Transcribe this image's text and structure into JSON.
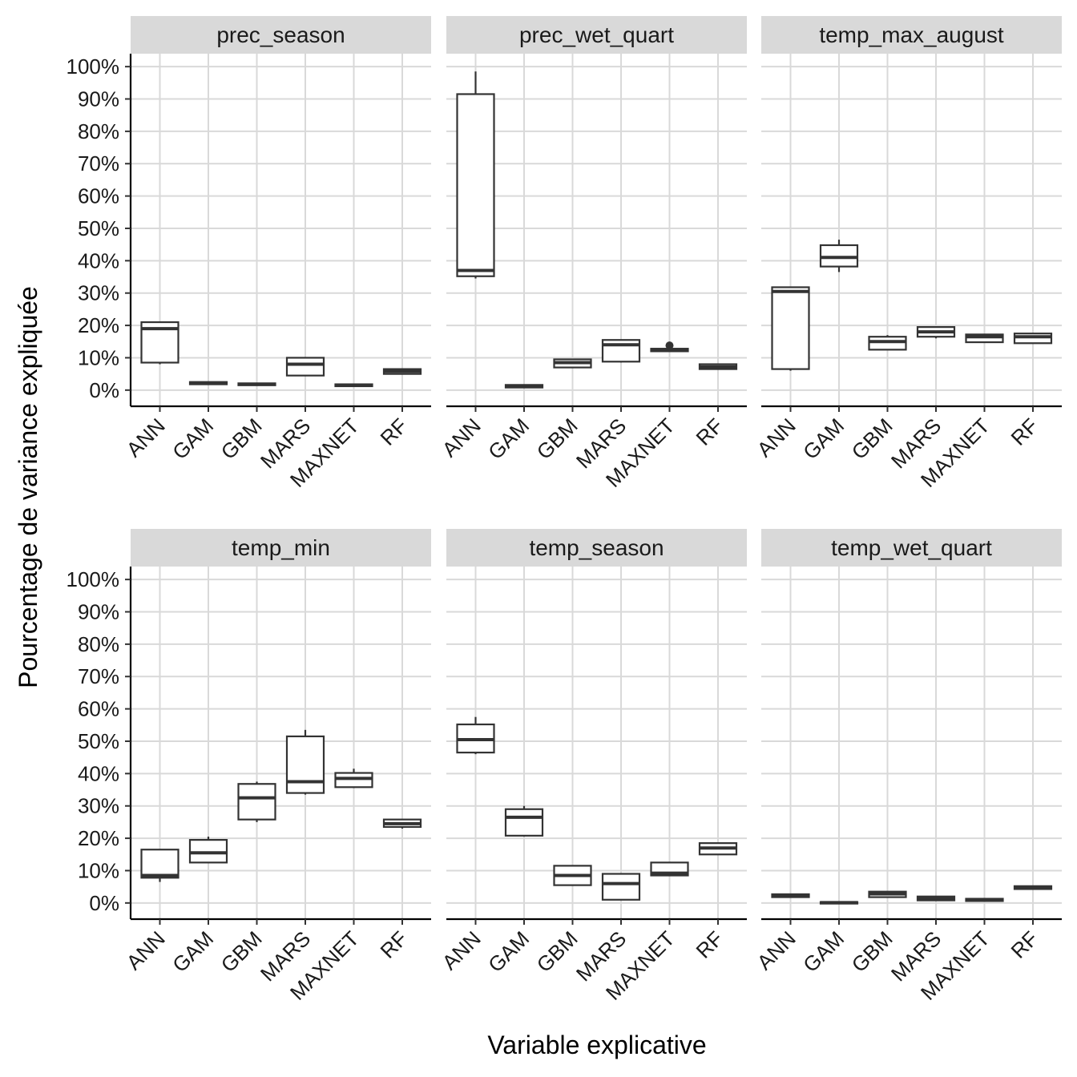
{
  "chart_data": {
    "type": "boxplot",
    "xlabel": "Variable explicative",
    "ylabel": "Pourcentage de variance expliquée",
    "ylim": [
      -5,
      104
    ],
    "y_ticks": [
      0,
      10,
      20,
      30,
      40,
      50,
      60,
      70,
      80,
      90,
      100
    ],
    "y_tick_labels": [
      "0%",
      "10%",
      "20%",
      "30%",
      "40%",
      "50%",
      "60%",
      "70%",
      "80%",
      "90%",
      "100%"
    ],
    "categories": [
      "ANN",
      "GAM",
      "GBM",
      "MARS",
      "MAXNET",
      "RF"
    ],
    "grid": true,
    "colors": {
      "strip": "#d9d9d9",
      "grid": "#d9d9d9",
      "box_stroke": "#333333",
      "box_fill": "#ffffff"
    },
    "panels": [
      {
        "title": "prec_season",
        "boxes": [
          {
            "category": "ANN",
            "min": 8,
            "q1": 8.5,
            "median": 19,
            "q3": 21,
            "max": 21,
            "outliers": []
          },
          {
            "category": "GAM",
            "min": 1.8,
            "q1": 1.8,
            "median": 2.2,
            "q3": 2.5,
            "max": 2.5,
            "outliers": []
          },
          {
            "category": "GBM",
            "min": 1.5,
            "q1": 1.5,
            "median": 1.8,
            "q3": 2.1,
            "max": 2.1,
            "outliers": []
          },
          {
            "category": "MARS",
            "min": 4.5,
            "q1": 4.5,
            "median": 8,
            "q3": 10,
            "max": 10,
            "outliers": []
          },
          {
            "category": "MAXNET",
            "min": 1.2,
            "q1": 1.2,
            "median": 1.5,
            "q3": 1.8,
            "max": 1.8,
            "outliers": []
          },
          {
            "category": "RF",
            "min": 5,
            "q1": 5,
            "median": 5.8,
            "q3": 6.5,
            "max": 6.5,
            "outliers": []
          }
        ]
      },
      {
        "title": "prec_wet_quart",
        "boxes": [
          {
            "category": "ANN",
            "min": 34.5,
            "q1": 35.2,
            "median": 37,
            "q3": 91.5,
            "max": 98.5,
            "outliers": []
          },
          {
            "category": "GAM",
            "min": 0.8,
            "q1": 0.8,
            "median": 1.2,
            "q3": 1.6,
            "max": 1.6,
            "outliers": []
          },
          {
            "category": "GBM",
            "min": 7,
            "q1": 7,
            "median": 8.5,
            "q3": 9.5,
            "max": 9.5,
            "outliers": []
          },
          {
            "category": "MARS",
            "min": 8.5,
            "q1": 8.8,
            "median": 14,
            "q3": 15.5,
            "max": 15.5,
            "outliers": []
          },
          {
            "category": "MAXNET",
            "min": 12,
            "q1": 12,
            "median": 12.5,
            "q3": 12.8,
            "max": 12.8,
            "outliers": [
              13.8
            ]
          },
          {
            "category": "RF",
            "min": 6.5,
            "q1": 6.5,
            "median": 7.2,
            "q3": 8,
            "max": 8,
            "outliers": []
          }
        ]
      },
      {
        "title": "temp_max_august",
        "boxes": [
          {
            "category": "ANN",
            "min": 6,
            "q1": 6.5,
            "median": 30.5,
            "q3": 31.8,
            "max": 31.8,
            "outliers": []
          },
          {
            "category": "GAM",
            "min": 36.5,
            "q1": 38.2,
            "median": 41,
            "q3": 44.8,
            "max": 46.5,
            "outliers": []
          },
          {
            "category": "GBM",
            "min": 12.5,
            "q1": 12.5,
            "median": 15,
            "q3": 16.5,
            "max": 17,
            "outliers": []
          },
          {
            "category": "MARS",
            "min": 16,
            "q1": 16.5,
            "median": 18,
            "q3": 19.5,
            "max": 19.5,
            "outliers": []
          },
          {
            "category": "MAXNET",
            "min": 14.8,
            "q1": 14.8,
            "median": 16.5,
            "q3": 17.2,
            "max": 17.2,
            "outliers": []
          },
          {
            "category": "RF",
            "min": 14.5,
            "q1": 14.5,
            "median": 16.5,
            "q3": 17.5,
            "max": 17.5,
            "outliers": []
          }
        ]
      },
      {
        "title": "temp_min",
        "boxes": [
          {
            "category": "ANN",
            "min": 6.5,
            "q1": 7.8,
            "median": 8.5,
            "q3": 16.5,
            "max": 16.5,
            "outliers": []
          },
          {
            "category": "GAM",
            "min": 12.5,
            "q1": 12.5,
            "median": 15.5,
            "q3": 19.5,
            "max": 20.5,
            "outliers": []
          },
          {
            "category": "GBM",
            "min": 25,
            "q1": 25.8,
            "median": 32.5,
            "q3": 36.8,
            "max": 37.5,
            "outliers": []
          },
          {
            "category": "MARS",
            "min": 33.5,
            "q1": 34,
            "median": 37.5,
            "q3": 51.5,
            "max": 53.5,
            "outliers": []
          },
          {
            "category": "MAXNET",
            "min": 35.5,
            "q1": 35.8,
            "median": 38.5,
            "q3": 40.2,
            "max": 41.5,
            "outliers": []
          },
          {
            "category": "RF",
            "min": 23,
            "q1": 23.5,
            "median": 24.5,
            "q3": 25.8,
            "max": 25.8,
            "outliers": []
          }
        ]
      },
      {
        "title": "temp_season",
        "boxes": [
          {
            "category": "ANN",
            "min": 46,
            "q1": 46.5,
            "median": 50.5,
            "q3": 55.2,
            "max": 57.5,
            "outliers": []
          },
          {
            "category": "GAM",
            "min": 20.5,
            "q1": 20.8,
            "median": 26.5,
            "q3": 29,
            "max": 30,
            "outliers": []
          },
          {
            "category": "GBM",
            "min": 5.5,
            "q1": 5.5,
            "median": 8.5,
            "q3": 11.5,
            "max": 11.5,
            "outliers": []
          },
          {
            "category": "MARS",
            "min": 1,
            "q1": 1,
            "median": 6,
            "q3": 9,
            "max": 9,
            "outliers": []
          },
          {
            "category": "MAXNET",
            "min": 8.5,
            "q1": 8.5,
            "median": 9.2,
            "q3": 12.5,
            "max": 12.5,
            "outliers": []
          },
          {
            "category": "RF",
            "min": 15,
            "q1": 15,
            "median": 17,
            "q3": 18.5,
            "max": 18.5,
            "outliers": []
          }
        ]
      },
      {
        "title": "temp_wet_quart",
        "boxes": [
          {
            "category": "ANN",
            "min": 1.8,
            "q1": 1.8,
            "median": 2.3,
            "q3": 2.7,
            "max": 2.7,
            "outliers": []
          },
          {
            "category": "GAM",
            "min": -0.1,
            "q1": -0.1,
            "median": 0.1,
            "q3": 0.3,
            "max": 0.3,
            "outliers": []
          },
          {
            "category": "GBM",
            "min": 1.8,
            "q1": 1.8,
            "median": 2.8,
            "q3": 3.5,
            "max": 3.5,
            "outliers": []
          },
          {
            "category": "MARS",
            "min": 0.8,
            "q1": 0.8,
            "median": 1.5,
            "q3": 2,
            "max": 2,
            "outliers": []
          },
          {
            "category": "MAXNET",
            "min": 0.6,
            "q1": 0.6,
            "median": 0.9,
            "q3": 1.3,
            "max": 1.3,
            "outliers": []
          },
          {
            "category": "RF",
            "min": 4.3,
            "q1": 4.3,
            "median": 4.8,
            "q3": 5.2,
            "max": 5.2,
            "outliers": []
          }
        ]
      }
    ]
  }
}
